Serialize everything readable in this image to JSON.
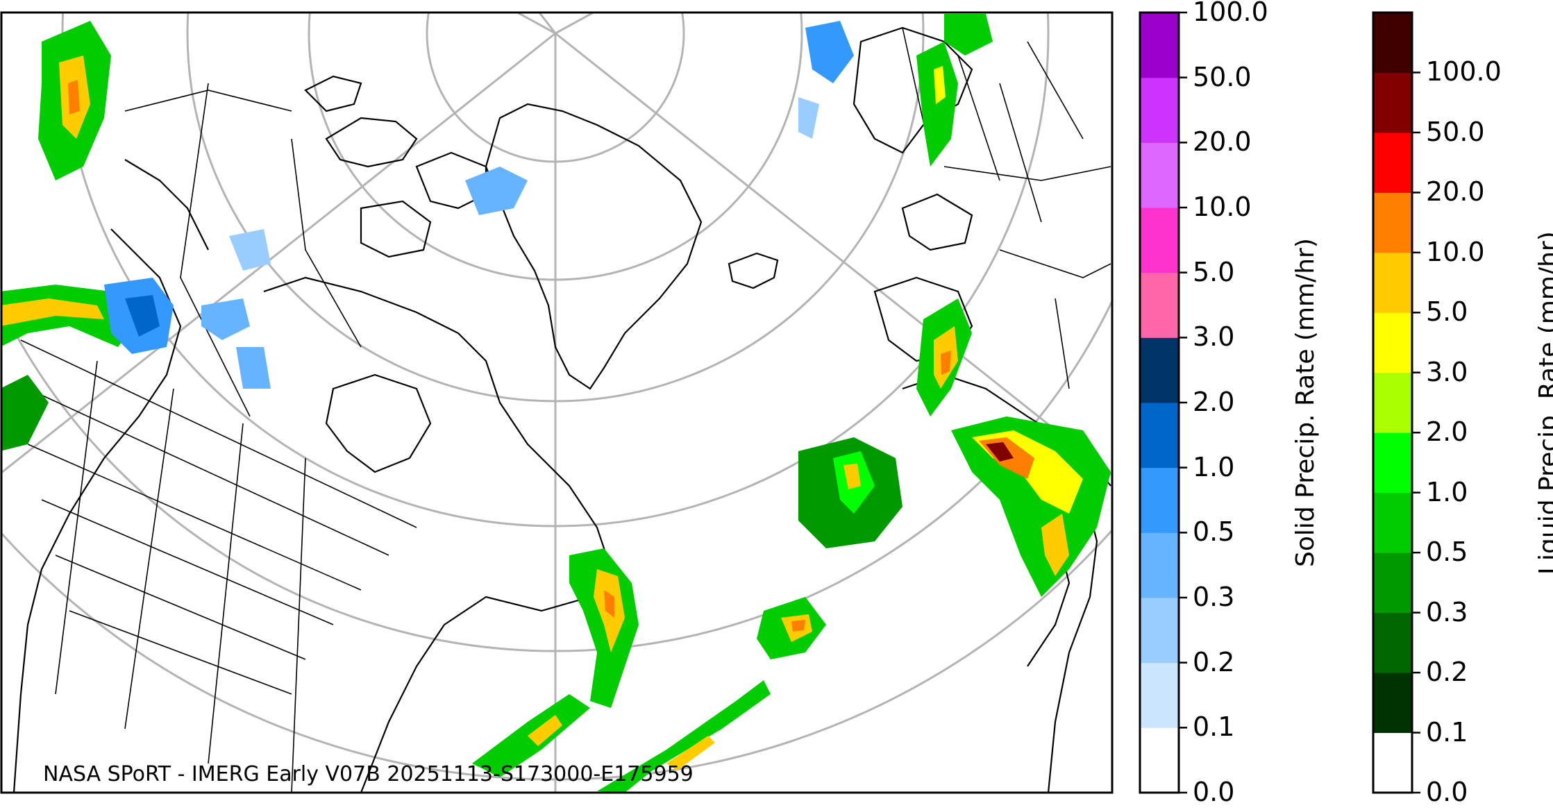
{
  "caption": "NASA SPoRT - IMERG Early V07B 20251113-S173000-E175959",
  "colorbars": [
    {
      "id": "solid",
      "title": "Solid Precip. Rate (mm/hr)",
      "ticks": [
        "0.0",
        "0.1",
        "0.2",
        "0.3",
        "0.5",
        "1.0",
        "2.0",
        "3.0",
        "5.0",
        "10.0",
        "20.0",
        "50.0",
        "100.0"
      ],
      "colors": [
        "#ffffff",
        "#cce6ff",
        "#99ccff",
        "#66b3ff",
        "#3399ff",
        "#0066cc",
        "#003366",
        "#ff66aa",
        "#ff33cc",
        "#dd66ff",
        "#cc33ff",
        "#9900cc"
      ]
    },
    {
      "id": "liquid",
      "title": "Liquid Precip. Rate (mm/hr)",
      "ticks": [
        "0.0",
        "0.1",
        "0.2",
        "0.3",
        "0.5",
        "1.0",
        "2.0",
        "3.0",
        "5.0",
        "10.0",
        "20.0",
        "50.0",
        "100.0"
      ],
      "colors": [
        "#ffffff",
        "#003300",
        "#006600",
        "#009900",
        "#00cc00",
        "#00ff00",
        "#aaff00",
        "#ffff00",
        "#ffcc00",
        "#ff8000",
        "#ff0000",
        "#800000",
        "#400000"
      ]
    }
  ],
  "map": {
    "colors": {
      "border": "#000000",
      "graticule": "#b3b3b3"
    }
  }
}
